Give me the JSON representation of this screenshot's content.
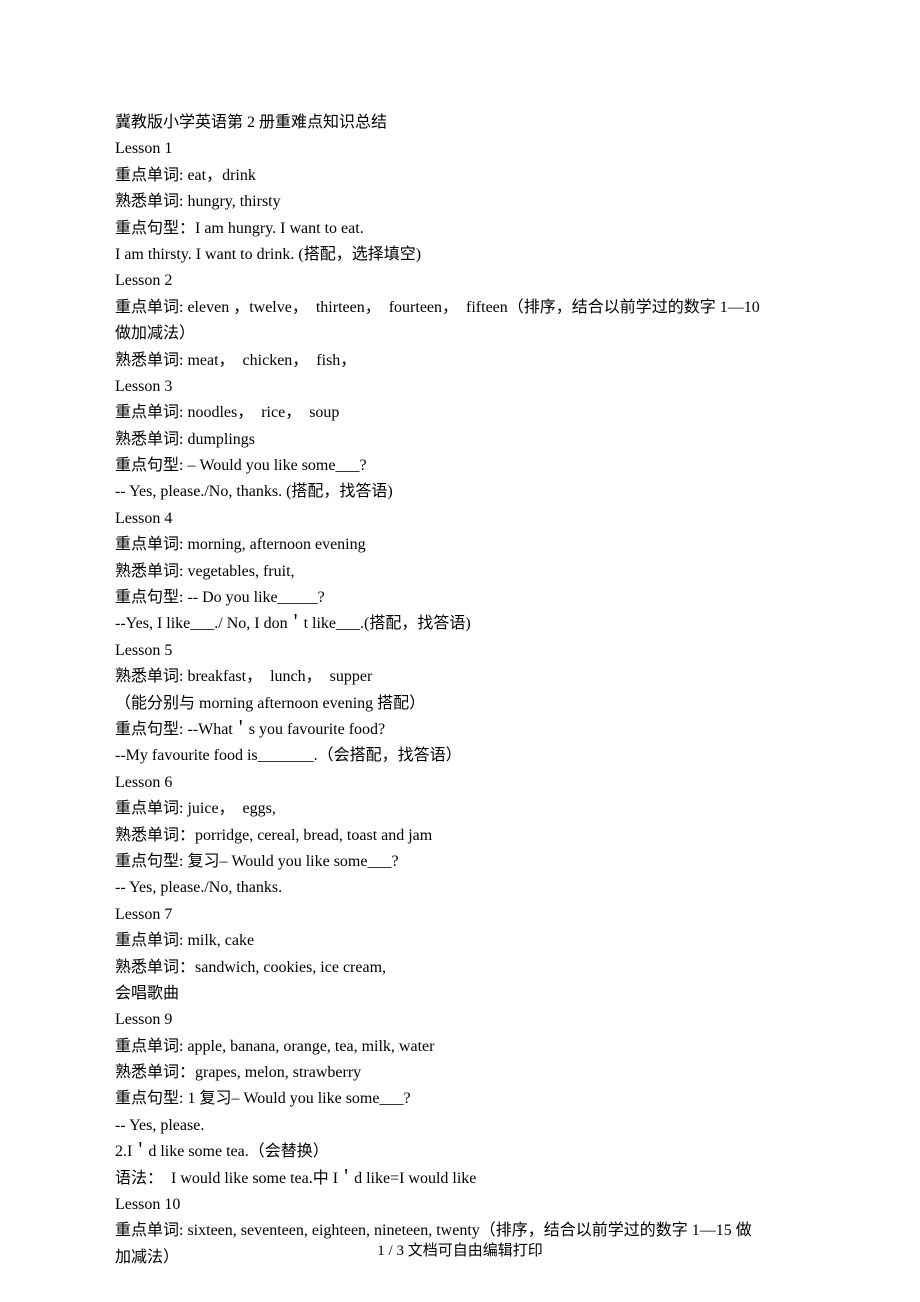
{
  "lines": [
    "冀教版小学英语第 2 册重难点知识总结",
    "Lesson 1",
    "重点单词: eat，drink",
    "熟悉单词: hungry, thirsty",
    "重点句型：I am hungry. I want to eat.",
    "I am thirsty. I want to drink. (搭配，选择填空)",
    "Lesson 2",
    "重点单词: eleven ，twelve，  thirteen，  fourteen，  fifteen（排序，结合以前学过的数字 1—10",
    "做加减法）",
    "熟悉单词: meat，  chicken，  fish，",
    "Lesson 3",
    "重点单词: noodles，  rice，  soup",
    "熟悉单词: dumplings",
    "重点句型: – Would you like some___?",
    "-- Yes, please./No, thanks. (搭配，找答语)",
    "Lesson 4",
    "重点单词: morning, afternoon evening",
    "熟悉单词: vegetables, fruit,",
    "重点句型: -- Do you like_____?",
    "--Yes, I like___./ No, I don＇t like___.(搭配，找答语)",
    "Lesson 5",
    "熟悉单词: breakfast，  lunch，  supper",
    "（能分别与 morning afternoon evening 搭配）",
    "重点句型: --What＇s you favourite food?",
    "--My favourite food is_______.（会搭配，找答语）",
    "Lesson 6",
    "重点单词: juice，  eggs,",
    "熟悉单词：porridge, cereal, bread, toast and jam",
    "重点句型: 复习– Would you like some___?",
    "-- Yes, please./No, thanks.",
    "Lesson 7",
    "重点单词: milk, cake",
    "熟悉单词：sandwich, cookies, ice cream,",
    "会唱歌曲",
    "Lesson 9",
    "重点单词: apple, banana, orange, tea, milk, water",
    "熟悉单词：grapes, melon, strawberry",
    "重点句型: 1 复习– Would you like some___?",
    "-- Yes, please.",
    "2.I＇d like some tea.（会替换）",
    "语法：  I would like some tea.中 I＇d like=I would like",
    "Lesson 10",
    "重点单词: sixteen, seventeen, eighteen, nineteen, twenty（排序，结合以前学过的数字 1—15 做",
    "加减法）"
  ],
  "footer": "1 / 3 文档可自由编辑打印"
}
